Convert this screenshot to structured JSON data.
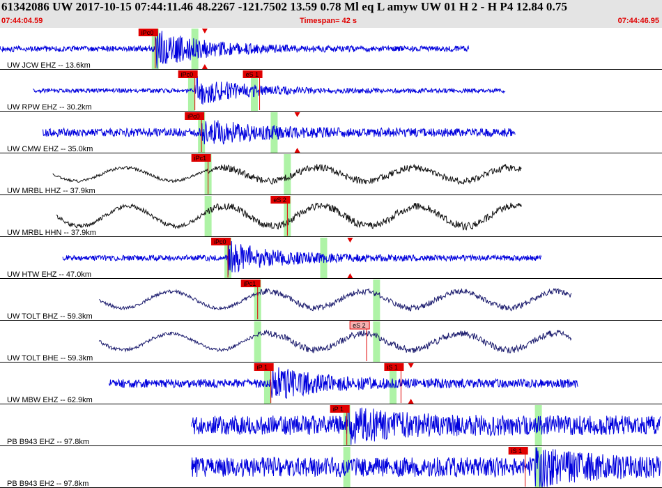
{
  "header": {
    "title": "61342086 UW 2017-10-15 07:44:11.46   48.2267 -121.7502  13.59  0.78 Ml  eq  L amyw     UW 01  H   2  -  H P4   12.84  0.75",
    "start_time": "07:44:04.59",
    "end_time": "07:44:46.95",
    "timespan": "Timespan=  42 s"
  },
  "colors": {
    "blue": "#0000dd",
    "black": "#111111",
    "navy": "#1c1c6e",
    "pick": "#e00000",
    "window": "#aef3a6"
  },
  "traces": [
    {
      "label": "UW JCW EHZ -- 13.6km",
      "color": "blue",
      "start": 0.0,
      "end": 0.71,
      "onset": 0.235,
      "amp": 4,
      "amp2": 26,
      "wave": "hf",
      "picks": [
        {
          "label": "iPc0",
          "pos": 0.235,
          "style": "box"
        },
        {
          "label": "",
          "pos": 0.31,
          "style": "tri"
        }
      ],
      "windows": [
        0.235,
        0.295
      ]
    },
    {
      "label": "UW RPW EHZ -- 30.2km",
      "color": "blue",
      "start": 0.05,
      "end": 0.765,
      "onset": 0.295,
      "amp": 3,
      "amp2": 20,
      "wave": "hf",
      "picks": [
        {
          "label": "iPc0",
          "pos": 0.295,
          "style": "box"
        },
        {
          "label": "eS 1",
          "pos": 0.393,
          "style": "box"
        }
      ],
      "windows": [
        0.29,
        0.385
      ]
    },
    {
      "label": "UW CMW EHZ -- 35.0km",
      "color": "blue",
      "start": 0.065,
      "end": 0.78,
      "onset": 0.305,
      "amp": 6,
      "amp2": 18,
      "wave": "hf",
      "picks": [
        {
          "label": "iPc0",
          "pos": 0.305,
          "style": "box"
        },
        {
          "label": "",
          "pos": 0.45,
          "style": "tri"
        }
      ],
      "windows": [
        0.305,
        0.415
      ]
    },
    {
      "label": "UW MRBL HHZ -- 37.9km",
      "color": "black",
      "start": 0.08,
      "end": 0.79,
      "onset": 0.315,
      "amp": 8,
      "amp2": 16,
      "wave": "lf",
      "picks": [
        {
          "label": "iPc1",
          "pos": 0.315,
          "style": "box"
        }
      ],
      "windows": [
        0.315,
        0.435
      ]
    },
    {
      "label": "UW MRBL HHN -- 37.9km",
      "color": "black",
      "start": 0.085,
      "end": 0.79,
      "onset": 0.315,
      "amp": 12,
      "amp2": 18,
      "wave": "lf",
      "picks": [
        {
          "label": "eS 2",
          "pos": 0.435,
          "style": "box"
        }
      ],
      "windows": [
        0.315,
        0.435
      ]
    },
    {
      "label": "UW HTW EHZ -- 47.0km",
      "color": "blue",
      "start": 0.095,
      "end": 0.82,
      "onset": 0.345,
      "amp": 4,
      "amp2": 22,
      "wave": "hf",
      "picks": [
        {
          "label": "iPc0",
          "pos": 0.345,
          "style": "box"
        },
        {
          "label": "",
          "pos": 0.53,
          "style": "tri"
        }
      ],
      "windows": [
        0.345,
        0.49
      ]
    },
    {
      "label": "UW TOLT BHZ -- 59.3km",
      "color": "navy",
      "start": 0.15,
      "end": 0.865,
      "onset": 0.39,
      "amp": 10,
      "amp2": 14,
      "wave": "lf",
      "picks": [
        {
          "label": "iPc1",
          "pos": 0.39,
          "style": "box"
        }
      ],
      "windows": [
        0.39,
        0.57
      ]
    },
    {
      "label": "UW TOLT BHE -- 59.3km",
      "color": "navy",
      "start": 0.15,
      "end": 0.865,
      "onset": 0.39,
      "amp": 10,
      "amp2": 16,
      "wave": "lf",
      "picks": [
        {
          "label": "eS 2",
          "pos": 0.555,
          "style": "boxlight"
        }
      ],
      "windows": [
        0.39,
        0.57
      ]
    },
    {
      "label": "UW MBW EHZ -- 62.9km",
      "color": "blue",
      "start": 0.165,
      "end": 0.875,
      "onset": 0.41,
      "amp": 6,
      "amp2": 22,
      "wave": "hf",
      "picks": [
        {
          "label": "iP 1",
          "pos": 0.41,
          "style": "box"
        },
        {
          "label": "iS 1",
          "pos": 0.607,
          "style": "box"
        },
        {
          "label": "",
          "pos": 0.622,
          "style": "tri"
        }
      ],
      "windows": [
        0.405,
        0.595
      ]
    },
    {
      "label": "PB B943 EHZ -- 97.8km",
      "color": "blue",
      "start": 0.29,
      "end": 1.0,
      "onset": 0.525,
      "amp": 14,
      "amp2": 18,
      "wave": "hf",
      "picks": [
        {
          "label": "iP 1",
          "pos": 0.525,
          "style": "box"
        }
      ],
      "windows": [
        0.525,
        0.815
      ]
    },
    {
      "label": "PB B943 EH2 -- 97.8km",
      "color": "blue",
      "start": 0.29,
      "end": 1.0,
      "onset": 0.81,
      "amp": 14,
      "amp2": 20,
      "wave": "hf",
      "picks": [
        {
          "label": "iS 1",
          "pos": 0.795,
          "style": "box"
        }
      ],
      "windows": [
        0.525,
        0.815
      ]
    }
  ]
}
